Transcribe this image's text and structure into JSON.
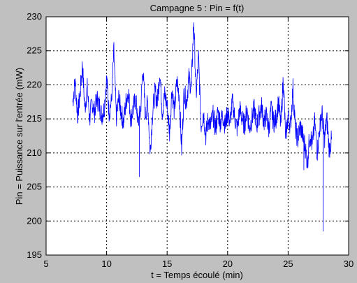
{
  "chart_data": {
    "type": "line",
    "title": "Campagne 5 : Pin = f(t)",
    "xlabel": "t = Temps écoulé (min)",
    "ylabel": "Pin = Puissance sur l'entrée (mW)",
    "xlim": [
      5,
      30
    ],
    "ylim": [
      195,
      230
    ],
    "xticks": [
      5,
      10,
      15,
      20,
      25,
      30
    ],
    "yticks": [
      195,
      200,
      205,
      210,
      215,
      220,
      225,
      230
    ],
    "grid": true,
    "series_color": "#0000ff",
    "background_color": "#c0c0c0",
    "axes_color": "#ffffff",
    "series": [
      {
        "x": [
          7.2,
          7.4,
          7.6,
          7.8,
          8.0,
          8.2,
          8.4,
          8.6,
          8.8,
          9.0,
          9.2,
          9.4,
          9.6,
          9.8,
          10.0,
          10.2,
          10.4,
          10.6,
          10.8,
          11.0,
          11.2,
          11.4,
          11.6,
          11.8,
          12.0,
          12.2,
          12.4,
          12.6,
          12.8,
          13.0,
          13.2,
          13.4,
          13.6,
          13.8,
          14.0,
          14.2,
          14.4,
          14.6,
          14.8,
          15.0,
          15.2,
          15.4,
          15.6,
          15.8,
          16.0,
          16.2,
          16.4,
          16.6,
          16.8,
          17.0,
          17.2,
          17.4,
          17.6,
          17.8,
          18.0,
          18.2,
          18.4,
          18.6,
          18.8,
          19.0,
          19.2,
          19.4,
          19.6,
          19.8,
          20.0,
          20.2,
          20.4,
          20.6,
          20.8,
          21.0,
          21.2,
          21.4,
          21.6,
          21.8,
          22.0,
          22.2,
          22.4,
          22.6,
          22.8,
          23.0,
          23.2,
          23.4,
          23.6,
          23.8,
          24.0,
          24.2,
          24.4,
          24.6,
          24.8,
          25.0,
          25.2,
          25.4,
          25.6,
          25.8,
          26.0,
          26.2,
          26.4,
          26.6,
          26.8,
          27.0,
          27.2,
          27.4,
          27.6,
          27.8,
          28.0,
          28.2,
          28.4,
          28.6
        ],
        "y": [
          217.5,
          220.5,
          215.5,
          218.5,
          223.0,
          216.5,
          219.5,
          215.0,
          217.5,
          216.0,
          218.0,
          217.0,
          215.5,
          216.5,
          221.0,
          216.0,
          217.5,
          225.0,
          215.0,
          218.0,
          216.0,
          214.5,
          217.5,
          219.0,
          215.0,
          216.5,
          218.0,
          214.5,
          216.0,
          222.5,
          215.5,
          217.5,
          210.0,
          216.0,
          219.0,
          217.5,
          222.0,
          216.0,
          218.5,
          217.0,
          213.0,
          219.5,
          216.0,
          220.5,
          218.5,
          210.5,
          219.0,
          217.5,
          221.0,
          219.5,
          229.5,
          218.5,
          224.0,
          214.0,
          216.0,
          212.5,
          215.0,
          214.0,
          215.5,
          213.5,
          216.0,
          214.5,
          215.5,
          214.0,
          216.0,
          214.5,
          217.5,
          215.0,
          213.5,
          216.5,
          215.0,
          214.0,
          216.5,
          213.5,
          215.0,
          216.5,
          214.0,
          215.5,
          217.0,
          214.5,
          215.5,
          213.5,
          216.5,
          214.5,
          215.0,
          217.5,
          214.0,
          221.0,
          212.0,
          215.5,
          214.0,
          219.5,
          213.5,
          212.0,
          214.0,
          212.5,
          211.0,
          208.5,
          213.0,
          211.0,
          214.5,
          210.0,
          213.5,
          216.0,
          212.0,
          215.0,
          210.5,
          212.0
        ],
        "spikes": [
          {
            "x": 12.7,
            "y": 206.5
          },
          {
            "x": 26.3,
            "y": 207.5
          },
          {
            "x": 27.9,
            "y": 198.5
          }
        ]
      }
    ]
  }
}
